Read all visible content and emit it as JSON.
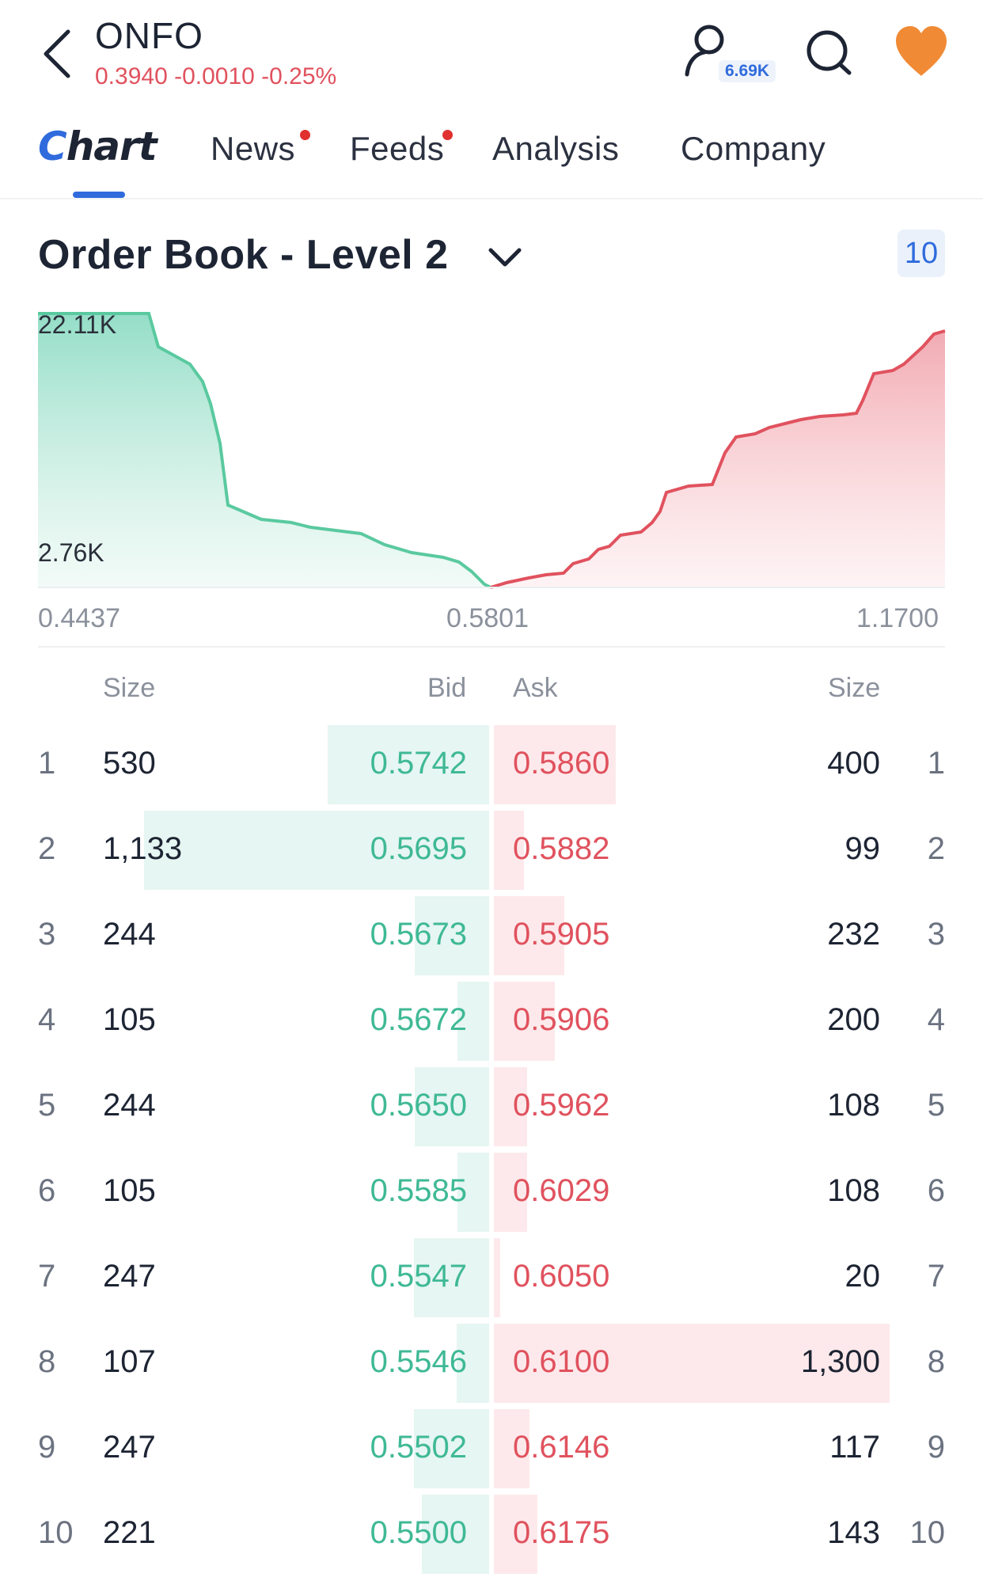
{
  "header": {
    "ticker": "ONFO",
    "quote": "0.3940 -0.0010 -0.25%",
    "followers": "6.69K"
  },
  "tabs": [
    {
      "label": "Chart",
      "active": true,
      "dot": false
    },
    {
      "label": "News",
      "active": false,
      "dot": true
    },
    {
      "label": "Feeds",
      "active": false,
      "dot": true
    },
    {
      "label": "Analysis",
      "active": false,
      "dot": false
    },
    {
      "label": "Company",
      "active": false,
      "dot": false
    }
  ],
  "section": {
    "title": "Order Book - Level 2",
    "depth": "10"
  },
  "chart_data": {
    "type": "area",
    "y_labels": [
      "22.11K",
      "2.76K"
    ],
    "x_labels": [
      "0.4437",
      "0.5801",
      "1.1700"
    ],
    "colors": {
      "bid": "#5ac9a0",
      "ask": "#e0525e"
    }
  },
  "table": {
    "headers": {
      "bid_size": "Size",
      "bid": "Bid",
      "ask": "Ask",
      "ask_size": "Size"
    },
    "rows": [
      {
        "level": "1",
        "bid_size": "530",
        "bid": "0.5742",
        "ask": "0.5860",
        "ask_size": "400",
        "bid_n": 530,
        "ask_n": 400
      },
      {
        "level": "2",
        "bid_size": "1,133",
        "bid": "0.5695",
        "ask": "0.5882",
        "ask_size": "99",
        "bid_n": 1133,
        "ask_n": 99
      },
      {
        "level": "3",
        "bid_size": "244",
        "bid": "0.5673",
        "ask": "0.5905",
        "ask_size": "232",
        "bid_n": 244,
        "ask_n": 232
      },
      {
        "level": "4",
        "bid_size": "105",
        "bid": "0.5672",
        "ask": "0.5906",
        "ask_size": "200",
        "bid_n": 105,
        "ask_n": 200
      },
      {
        "level": "5",
        "bid_size": "244",
        "bid": "0.5650",
        "ask": "0.5962",
        "ask_size": "108",
        "bid_n": 244,
        "ask_n": 108
      },
      {
        "level": "6",
        "bid_size": "105",
        "bid": "0.5585",
        "ask": "0.6029",
        "ask_size": "108",
        "bid_n": 105,
        "ask_n": 108
      },
      {
        "level": "7",
        "bid_size": "247",
        "bid": "0.5547",
        "ask": "0.6050",
        "ask_size": "20",
        "bid_n": 247,
        "ask_n": 20
      },
      {
        "level": "8",
        "bid_size": "107",
        "bid": "0.5546",
        "ask": "0.6100",
        "ask_size": "1,300",
        "bid_n": 107,
        "ask_n": 1300
      },
      {
        "level": "9",
        "bid_size": "247",
        "bid": "0.5502",
        "ask": "0.6146",
        "ask_size": "117",
        "bid_n": 247,
        "ask_n": 117
      },
      {
        "level": "10",
        "bid_size": "221",
        "bid": "0.5500",
        "ask": "0.6175",
        "ask_size": "143",
        "bid_n": 221,
        "ask_n": 143
      }
    ]
  }
}
